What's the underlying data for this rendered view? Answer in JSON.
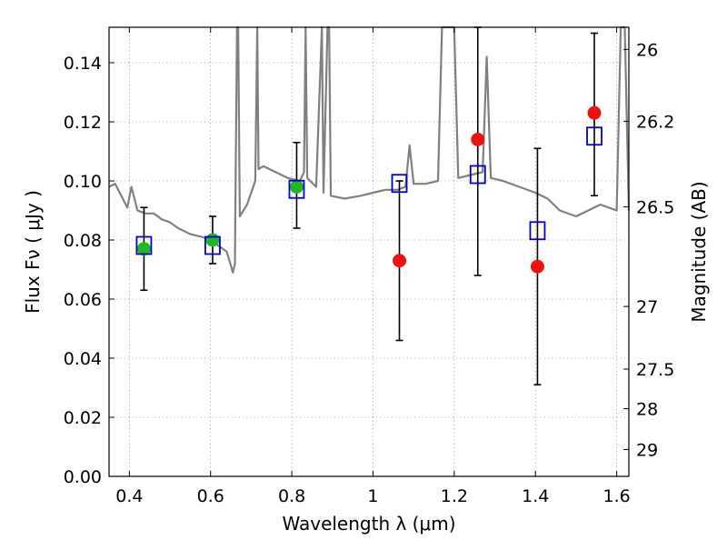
{
  "chart_data": {
    "type": "scatter",
    "xlabel": "Wavelength  λ (μm)",
    "ylabel": "Flux  Fν  ( μJy )",
    "ylabel_right": "Magnitude (AB)",
    "xlim": [
      0.35,
      1.63
    ],
    "ylim": [
      0.0,
      0.152
    ],
    "grid": true,
    "x_ticks": [
      {
        "value": 0.4,
        "label": "0.4"
      },
      {
        "value": 0.6,
        "label": "0.6"
      },
      {
        "value": 0.8,
        "label": "0.8"
      },
      {
        "value": 1.0,
        "label": "1"
      },
      {
        "value": 1.2,
        "label": "1.2"
      },
      {
        "value": 1.4,
        "label": "1.4"
      },
      {
        "value": 1.6,
        "label": "1.6"
      }
    ],
    "y_ticks": [
      {
        "value": 0.0,
        "label": "0.00"
      },
      {
        "value": 0.02,
        "label": "0.02"
      },
      {
        "value": 0.04,
        "label": "0.04"
      },
      {
        "value": 0.06,
        "label": "0.06"
      },
      {
        "value": 0.08,
        "label": "0.08"
      },
      {
        "value": 0.1,
        "label": "0.10"
      },
      {
        "value": 0.12,
        "label": "0.12"
      },
      {
        "value": 0.14,
        "label": "0.14"
      }
    ],
    "right_ticks": [
      {
        "flux": 0.1445,
        "label": "26"
      },
      {
        "flux": 0.1202,
        "label": "26.2"
      },
      {
        "flux": 0.0912,
        "label": "26.5"
      },
      {
        "flux": 0.0575,
        "label": "27"
      },
      {
        "flux": 0.0363,
        "label": "27.5"
      },
      {
        "flux": 0.0229,
        "label": "28"
      },
      {
        "flux": 0.0091,
        "label": "29"
      }
    ],
    "colors": {
      "model": "#808080",
      "green": "#1fb81f",
      "red": "#ee1111",
      "box": "#0000cc",
      "errorbar": "#000000"
    },
    "model_spectrum": [
      [
        0.35,
        0.098
      ],
      [
        0.365,
        0.099
      ],
      [
        0.38,
        0.095
      ],
      [
        0.395,
        0.091
      ],
      [
        0.405,
        0.098
      ],
      [
        0.42,
        0.09
      ],
      [
        0.44,
        0.089
      ],
      [
        0.46,
        0.089
      ],
      [
        0.48,
        0.087
      ],
      [
        0.5,
        0.086
      ],
      [
        0.52,
        0.084
      ],
      [
        0.55,
        0.082
      ],
      [
        0.58,
        0.081
      ],
      [
        0.6,
        0.08
      ],
      [
        0.62,
        0.078
      ],
      [
        0.64,
        0.076
      ],
      [
        0.655,
        0.069
      ],
      [
        0.66,
        0.072
      ],
      [
        0.665,
        0.152
      ],
      [
        0.668,
        0.152
      ],
      [
        0.672,
        0.088
      ],
      [
        0.69,
        0.092
      ],
      [
        0.71,
        0.1
      ],
      [
        0.715,
        0.152
      ],
      [
        0.718,
        0.104
      ],
      [
        0.73,
        0.105
      ],
      [
        0.76,
        0.103
      ],
      [
        0.79,
        0.101
      ],
      [
        0.82,
        0.1
      ],
      [
        0.83,
        0.103
      ],
      [
        0.834,
        0.152
      ],
      [
        0.838,
        0.101
      ],
      [
        0.86,
        0.098
      ],
      [
        0.874,
        0.152
      ],
      [
        0.878,
        0.096
      ],
      [
        0.888,
        0.152
      ],
      [
        0.892,
        0.152
      ],
      [
        0.896,
        0.095
      ],
      [
        0.93,
        0.094
      ],
      [
        0.97,
        0.095
      ],
      [
        1.0,
        0.096
      ],
      [
        1.03,
        0.097
      ],
      [
        1.06,
        0.097
      ],
      [
        1.08,
        0.098
      ],
      [
        1.09,
        0.112
      ],
      [
        1.1,
        0.099
      ],
      [
        1.13,
        0.099
      ],
      [
        1.16,
        0.1
      ],
      [
        1.17,
        0.152
      ],
      [
        1.2,
        0.152
      ],
      [
        1.21,
        0.101
      ],
      [
        1.24,
        0.102
      ],
      [
        1.27,
        0.103
      ],
      [
        1.28,
        0.142
      ],
      [
        1.29,
        0.101
      ],
      [
        1.32,
        0.1
      ],
      [
        1.36,
        0.098
      ],
      [
        1.4,
        0.096
      ],
      [
        1.43,
        0.094
      ],
      [
        1.46,
        0.09
      ],
      [
        1.5,
        0.088
      ],
      [
        1.53,
        0.09
      ],
      [
        1.56,
        0.092
      ],
      [
        1.58,
        0.091
      ],
      [
        1.6,
        0.09
      ],
      [
        1.61,
        0.152
      ],
      [
        1.62,
        0.152
      ],
      [
        1.63,
        0.09
      ]
    ],
    "series": [
      {
        "marker": "green-circle",
        "points": [
          {
            "x": 0.436,
            "y": 0.077
          },
          {
            "x": 0.605,
            "y": 0.08
          },
          {
            "x": 0.812,
            "y": 0.098
          }
        ]
      },
      {
        "marker": "red-circle",
        "points": [
          {
            "x": 1.065,
            "y": 0.073
          },
          {
            "x": 1.258,
            "y": 0.114
          },
          {
            "x": 1.405,
            "y": 0.071
          },
          {
            "x": 1.545,
            "y": 0.123
          }
        ]
      },
      {
        "marker": "blue-open-square",
        "points": [
          {
            "x": 0.436,
            "y": 0.078
          },
          {
            "x": 0.605,
            "y": 0.078
          },
          {
            "x": 0.812,
            "y": 0.097
          },
          {
            "x": 1.065,
            "y": 0.099
          },
          {
            "x": 1.258,
            "y": 0.102
          },
          {
            "x": 1.405,
            "y": 0.083
          },
          {
            "x": 1.545,
            "y": 0.115
          }
        ]
      }
    ],
    "error_bars": [
      {
        "x": 0.436,
        "lo": 0.063,
        "hi": 0.091
      },
      {
        "x": 0.605,
        "lo": 0.072,
        "hi": 0.088
      },
      {
        "x": 0.812,
        "lo": 0.084,
        "hi": 0.113
      },
      {
        "x": 1.065,
        "lo": 0.046,
        "hi": 0.1
      },
      {
        "x": 1.258,
        "lo": 0.068,
        "hi": 0.152
      },
      {
        "x": 1.405,
        "lo": 0.031,
        "hi": 0.111
      },
      {
        "x": 1.545,
        "lo": 0.095,
        "hi": 0.15
      }
    ]
  }
}
